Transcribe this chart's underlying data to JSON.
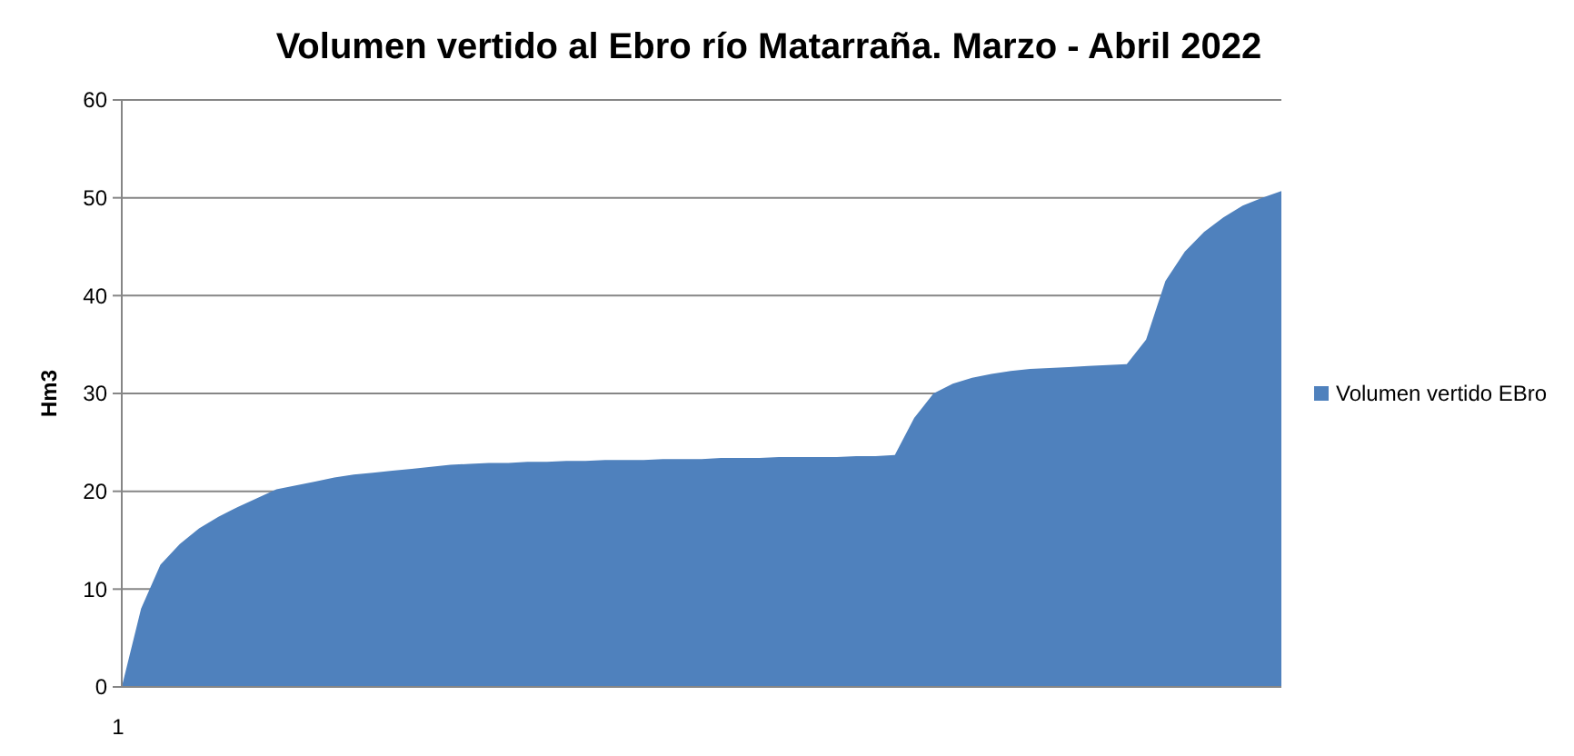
{
  "chart_data": {
    "type": "area",
    "title": "Volumen vertido al Ebro río Matarraña. Marzo -  Abril 2022",
    "ylabel": "Hm3",
    "categories": [
      "1",
      null,
      null,
      null,
      null,
      null,
      null,
      null,
      null,
      null,
      null,
      null,
      null,
      null,
      null,
      null,
      null,
      null,
      null,
      null,
      null,
      null,
      null,
      null,
      null,
      null,
      null,
      null,
      null,
      null,
      null,
      null,
      null,
      null,
      null,
      null,
      null,
      null,
      null,
      null,
      null,
      null,
      null,
      null,
      null,
      null,
      null,
      null,
      null,
      null,
      null,
      null,
      null,
      null,
      null,
      null,
      null,
      null,
      null,
      null,
      null
    ],
    "series": [
      {
        "name": "Volumen vertido EBro",
        "color": "#4f81bd",
        "values": [
          0,
          8,
          12.5,
          14.6,
          16.2,
          17.4,
          18.4,
          19.3,
          20.2,
          20.6,
          21,
          21.4,
          21.7,
          21.9,
          22.1,
          22.3,
          22.5,
          22.7,
          22.8,
          22.9,
          22.9,
          23,
          23,
          23.1,
          23.1,
          23.2,
          23.2,
          23.2,
          23.3,
          23.3,
          23.3,
          23.4,
          23.4,
          23.4,
          23.5,
          23.5,
          23.5,
          23.5,
          23.6,
          23.6,
          23.7,
          27.5,
          30,
          31,
          31.6,
          32,
          32.3,
          32.5,
          32.6,
          32.7,
          32.8,
          32.9,
          33,
          35.5,
          41.5,
          44.5,
          46.5,
          48,
          49.2,
          50,
          50.7
        ]
      }
    ],
    "ylim": [
      0,
      60
    ],
    "yticks": [
      0,
      10,
      20,
      30,
      40,
      50,
      60
    ],
    "grid": "y",
    "legend": "right"
  }
}
